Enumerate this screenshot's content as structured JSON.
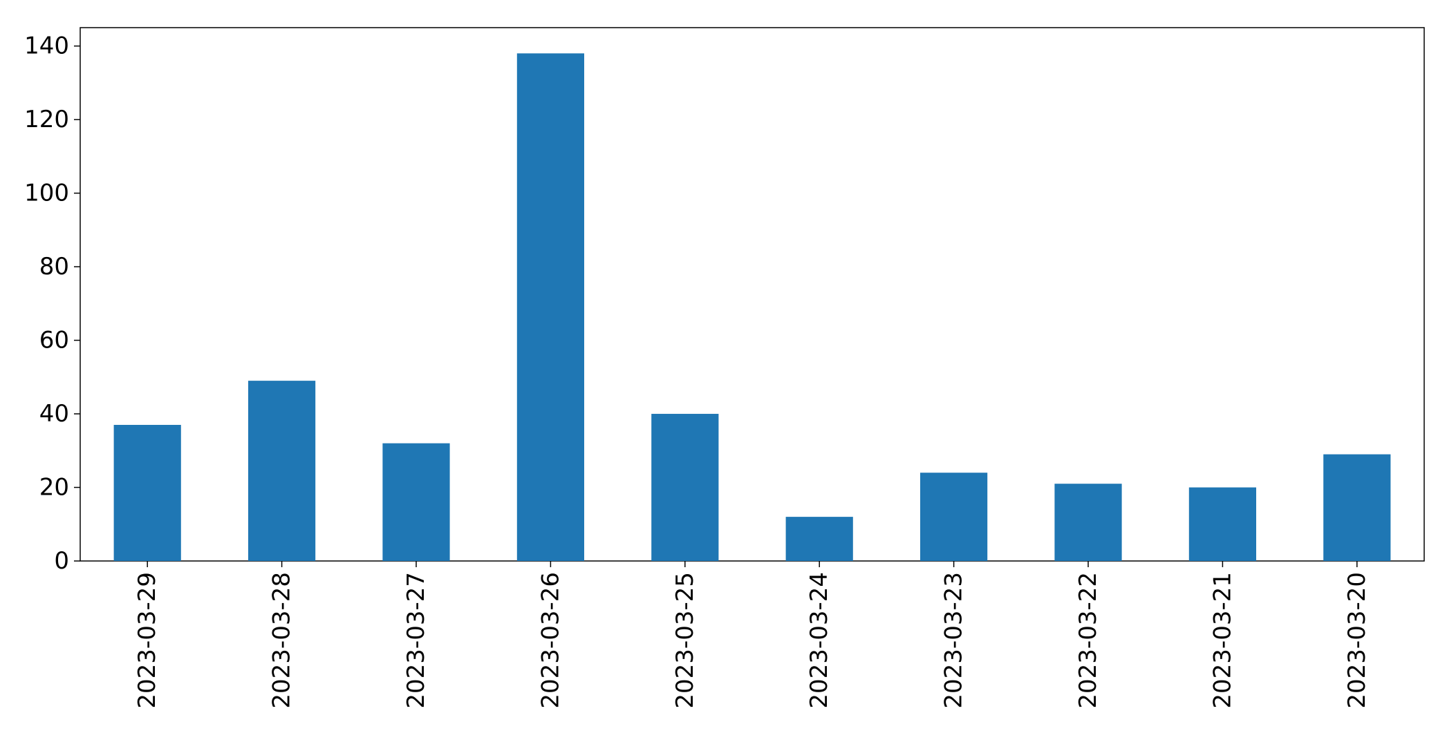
{
  "chart_data": {
    "type": "bar",
    "categories": [
      "2023-03-29",
      "2023-03-28",
      "2023-03-27",
      "2023-03-26",
      "2023-03-25",
      "2023-03-24",
      "2023-03-23",
      "2023-03-22",
      "2023-03-21",
      "2023-03-20"
    ],
    "values": [
      37,
      49,
      32,
      138,
      40,
      12,
      24,
      21,
      20,
      29
    ],
    "title": "",
    "xlabel": "",
    "ylabel": "",
    "ylim": [
      0,
      145
    ],
    "yticks": [
      0,
      20,
      40,
      60,
      80,
      100,
      120,
      140
    ],
    "grid": false,
    "legend": "none",
    "bar_color": "#1f77b4",
    "x_tick_rotation": "vertical"
  }
}
